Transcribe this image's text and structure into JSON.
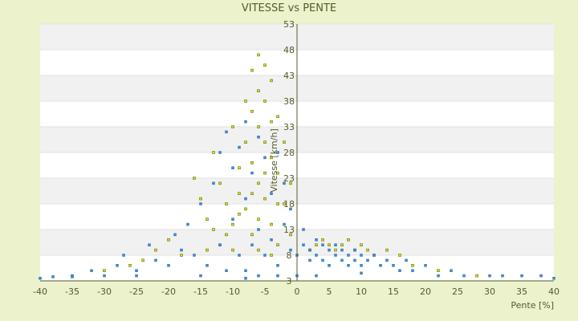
{
  "chart_data": {
    "type": "scatter",
    "title": "VITESSE vs PENTE",
    "xlabel": "Pente [%]",
    "ylabel": "Vitesse [km/h]",
    "xlim": [
      -40,
      40
    ],
    "ylim": [
      3,
      53
    ],
    "x_ticks": [
      "-40",
      "-35",
      "-30",
      "-25",
      "-20",
      "-15",
      "-10",
      "-5",
      "0",
      "5",
      "10",
      "15",
      "20",
      "25",
      "30",
      "35",
      "40"
    ],
    "y_ticks": [
      "3",
      "8",
      "13",
      "18",
      "23",
      "28",
      "33",
      "38",
      "43",
      "48",
      "53"
    ],
    "grid": true,
    "series": [
      {
        "color": "#d6e000",
        "stroke": "#4a5a10",
        "points": [
          [
            -16,
            23
          ],
          [
            -15,
            19
          ],
          [
            -14,
            15
          ],
          [
            -13,
            28
          ],
          [
            -12,
            22
          ],
          [
            -11,
            18
          ],
          [
            -10,
            33
          ],
          [
            -10,
            14
          ],
          [
            -9,
            25
          ],
          [
            -9,
            20
          ],
          [
            -8,
            38
          ],
          [
            -8,
            30
          ],
          [
            -8,
            17
          ],
          [
            -7,
            44
          ],
          [
            -7,
            36
          ],
          [
            -7,
            26
          ],
          [
            -7,
            12
          ],
          [
            -6,
            47
          ],
          [
            -6,
            40
          ],
          [
            -6,
            33
          ],
          [
            -6,
            22
          ],
          [
            -6,
            15
          ],
          [
            -5,
            45
          ],
          [
            -5,
            38
          ],
          [
            -5,
            30
          ],
          [
            -5,
            19
          ],
          [
            -4,
            42
          ],
          [
            -4,
            34
          ],
          [
            -4,
            27
          ],
          [
            -4,
            14
          ],
          [
            -3,
            35
          ],
          [
            -3,
            24
          ],
          [
            -3,
            10
          ],
          [
            -2,
            30
          ],
          [
            -2,
            18
          ],
          [
            -1,
            22
          ],
          [
            -1,
            12
          ],
          [
            -12,
            10
          ],
          [
            -14,
            9
          ],
          [
            -18,
            8
          ],
          [
            -20,
            11
          ],
          [
            -22,
            9
          ],
          [
            -10,
            9
          ],
          [
            -6,
            9
          ],
          [
            -4,
            8
          ],
          [
            2,
            9
          ],
          [
            3,
            10
          ],
          [
            4,
            11
          ],
          [
            5,
            10
          ],
          [
            6,
            9
          ],
          [
            7,
            10
          ],
          [
            8,
            11
          ],
          [
            9,
            9
          ],
          [
            10,
            10
          ],
          [
            11,
            9
          ],
          [
            12,
            8
          ],
          [
            14,
            9
          ],
          [
            16,
            8
          ],
          [
            18,
            6
          ],
          [
            22,
            5
          ],
          [
            28,
            4
          ],
          [
            -24,
            7
          ],
          [
            -26,
            6
          ],
          [
            -30,
            5
          ],
          [
            -13,
            13
          ],
          [
            -11,
            12
          ],
          [
            -9,
            16
          ],
          [
            -7,
            20
          ],
          [
            -5,
            24
          ],
          [
            -3,
            18
          ]
        ]
      },
      {
        "color": "#3f8ed0",
        "stroke": "#2a6fb0",
        "points": [
          [
            -40,
            3.5
          ],
          [
            -38,
            3.8
          ],
          [
            -35,
            4
          ],
          [
            -32,
            5
          ],
          [
            -30,
            4
          ],
          [
            -28,
            6
          ],
          [
            -27,
            8
          ],
          [
            -25,
            5
          ],
          [
            -23,
            10
          ],
          [
            -22,
            7
          ],
          [
            -20,
            6
          ],
          [
            -19,
            12
          ],
          [
            -18,
            9
          ],
          [
            -17,
            14
          ],
          [
            -16,
            8
          ],
          [
            -15,
            18
          ],
          [
            -14,
            6
          ],
          [
            -13,
            22
          ],
          [
            -12,
            28
          ],
          [
            -12,
            10
          ],
          [
            -11,
            32
          ],
          [
            -11,
            5
          ],
          [
            -10,
            25
          ],
          [
            -10,
            15
          ],
          [
            -9,
            29
          ],
          [
            -9,
            8
          ],
          [
            -8,
            34
          ],
          [
            -8,
            19
          ],
          [
            -8,
            5
          ],
          [
            -7,
            24
          ],
          [
            -7,
            10
          ],
          [
            -6,
            31
          ],
          [
            -6,
            13
          ],
          [
            -6,
            4
          ],
          [
            -5,
            27
          ],
          [
            -5,
            8
          ],
          [
            -4,
            20
          ],
          [
            -4,
            11
          ],
          [
            -3,
            28
          ],
          [
            -3,
            6
          ],
          [
            -2,
            22
          ],
          [
            -2,
            14
          ],
          [
            -1,
            17
          ],
          [
            -1,
            9
          ],
          [
            0,
            8
          ],
          [
            0,
            4
          ],
          [
            1,
            13
          ],
          [
            1,
            10
          ],
          [
            2,
            9
          ],
          [
            2,
            7
          ],
          [
            3,
            11
          ],
          [
            3,
            8
          ],
          [
            4,
            10
          ],
          [
            4,
            7
          ],
          [
            5,
            9
          ],
          [
            5,
            6
          ],
          [
            6,
            10
          ],
          [
            6,
            8
          ],
          [
            7,
            9
          ],
          [
            7,
            7
          ],
          [
            8,
            8
          ],
          [
            8,
            6
          ],
          [
            9,
            9
          ],
          [
            9,
            7
          ],
          [
            10,
            8
          ],
          [
            10,
            6
          ],
          [
            11,
            7
          ],
          [
            12,
            8
          ],
          [
            13,
            6
          ],
          [
            14,
            7
          ],
          [
            15,
            6
          ],
          [
            16,
            5
          ],
          [
            17,
            7
          ],
          [
            18,
            5
          ],
          [
            20,
            6
          ],
          [
            22,
            4
          ],
          [
            24,
            5
          ],
          [
            26,
            4
          ],
          [
            30,
            4
          ],
          [
            32,
            4
          ],
          [
            35,
            4
          ],
          [
            38,
            4
          ],
          [
            40,
            3.5
          ],
          [
            -35,
            3.8
          ],
          [
            -25,
            4
          ],
          [
            -15,
            4
          ],
          [
            -8,
            3.5
          ],
          [
            -3,
            4
          ],
          [
            3,
            4
          ],
          [
            10,
            4.5
          ]
        ]
      }
    ]
  }
}
